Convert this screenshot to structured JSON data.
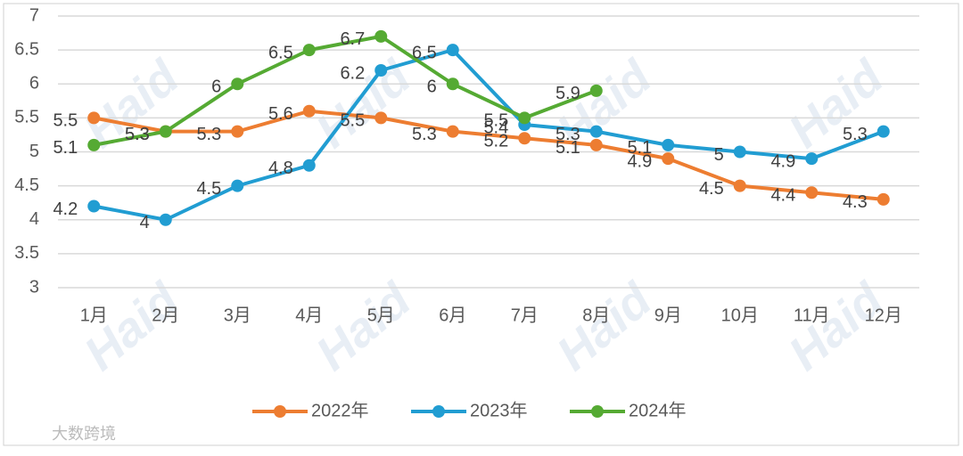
{
  "chart_data": {
    "type": "line",
    "categories": [
      "1月",
      "2月",
      "3月",
      "4月",
      "5月",
      "6月",
      "7月",
      "8月",
      "9月",
      "10月",
      "11月",
      "12月"
    ],
    "series": [
      {
        "name": "2022年",
        "color": "#ed7d31",
        "values": [
          5.5,
          5.3,
          5.3,
          5.6,
          5.5,
          5.3,
          5.2,
          5.1,
          4.9,
          4.5,
          4.4,
          4.3
        ]
      },
      {
        "name": "2023年",
        "color": "#219dd2",
        "values": [
          4.2,
          4,
          4.5,
          4.8,
          6.2,
          6.5,
          5.4,
          5.3,
          5.1,
          5,
          4.9,
          5.3
        ]
      },
      {
        "name": "2024年",
        "color": "#55aa33",
        "values": [
          5.1,
          5.3,
          6,
          6.5,
          6.7,
          6,
          5.5,
          5.9,
          null,
          null,
          null,
          null
        ]
      }
    ],
    "ylim": [
      3,
      7
    ],
    "yticks": [
      3,
      3.5,
      4,
      4.5,
      5,
      5.5,
      6,
      6.5,
      7
    ],
    "grid": true,
    "legend": "bottom",
    "watermark": "Haid",
    "source_watermark": "大数跨境"
  }
}
